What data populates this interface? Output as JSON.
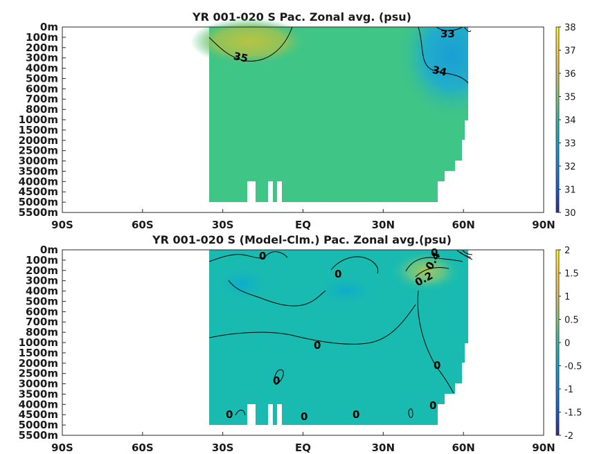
{
  "chart_data": [
    {
      "type": "heatmap",
      "title": "YR 001-020 S Pac. Zonal avg. (psu)",
      "x_ticks": [
        "90S",
        "60S",
        "30S",
        "EQ",
        "30N",
        "60N",
        "90N"
      ],
      "x_tick_values": [
        -90,
        -60,
        -30,
        0,
        30,
        60,
        90
      ],
      "y_ticks": [
        "0m",
        "100m",
        "200m",
        "300m",
        "400m",
        "500m",
        "600m",
        "700m",
        "800m",
        "1000m",
        "1500m",
        "2000m",
        "2500m",
        "3000m",
        "3500m",
        "4000m",
        "4500m",
        "5000m",
        "5500m"
      ],
      "colorbar": {
        "min": 30,
        "max": 38,
        "ticks": [
          "30",
          "31",
          "32",
          "33",
          "34",
          "35",
          "36",
          "37",
          "38"
        ]
      },
      "contour_labels": [
        "33",
        "34",
        "35"
      ],
      "data_extent": {
        "lat_min": -35,
        "lat_max": 62
      }
    },
    {
      "type": "heatmap",
      "title": "YR 001-020 S (Model-Clm.) Pac. Zonal avg.(psu)",
      "x_ticks": [
        "90S",
        "60S",
        "30S",
        "EQ",
        "30N",
        "60N",
        "90N"
      ],
      "x_tick_values": [
        -90,
        -60,
        -30,
        0,
        30,
        60,
        90
      ],
      "y_ticks": [
        "0m",
        "100m",
        "200m",
        "300m",
        "400m",
        "500m",
        "600m",
        "700m",
        "800m",
        "1000m",
        "1500m",
        "2000m",
        "2500m",
        "3000m",
        "3500m",
        "4000m",
        "4500m",
        "5000m",
        "5500m"
      ],
      "colorbar": {
        "min": -2,
        "max": 2,
        "ticks": [
          "-2",
          "-1.5",
          "-1",
          "-0.5",
          "0",
          "0.5",
          "1",
          "1.5",
          "2"
        ]
      },
      "contour_labels": [
        "0",
        "0",
        "0",
        "0",
        "0",
        "0",
        "0",
        "0",
        "0",
        "0.2",
        "0.4",
        "0"
      ],
      "data_extent": {
        "lat_min": -35,
        "lat_max": 62
      }
    }
  ],
  "colors": {
    "parula_low": "#352a87",
    "parula_mid": "#14b8aa",
    "parula_high": "#f9fb0e",
    "ocean_main": "#3fc586",
    "ocean_diff": "#19bbb0"
  }
}
